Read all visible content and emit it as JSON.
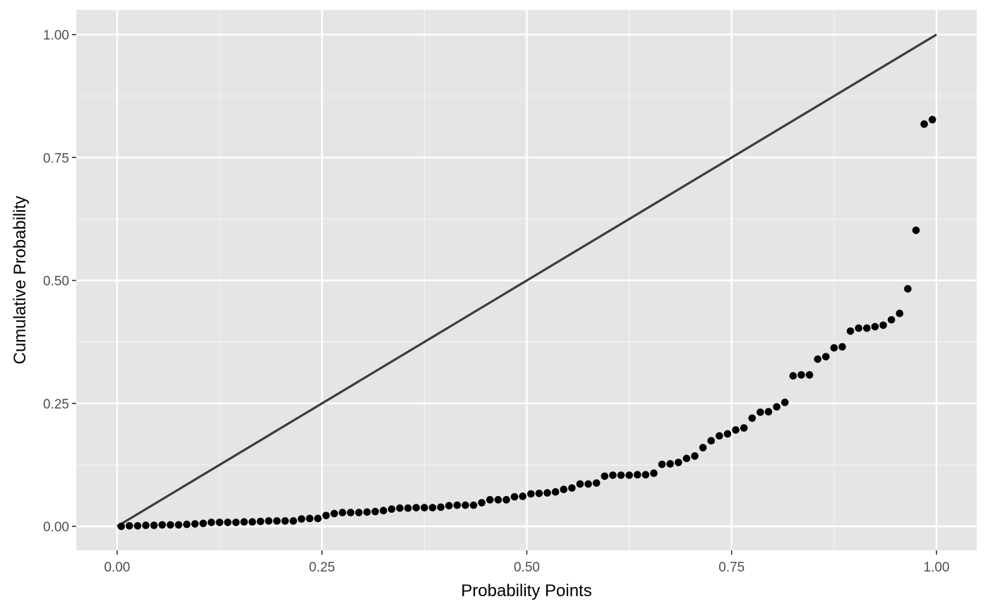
{
  "chart_data": {
    "type": "scatter",
    "xlabel": "Probability Points",
    "ylabel": "Cumulative Probability",
    "xlim": [
      -0.05,
      1.05
    ],
    "ylim": [
      -0.05,
      1.05
    ],
    "x_ticks": [
      0,
      0.25,
      0.5,
      0.75,
      1
    ],
    "x_tick_labels": [
      "0.00",
      "0.25",
      "0.50",
      "0.75",
      "1.00"
    ],
    "y_ticks": [
      0,
      0.25,
      0.5,
      0.75,
      1
    ],
    "y_tick_labels": [
      "0.00",
      "0.25",
      "0.50",
      "0.75",
      "1.00"
    ],
    "grid": true,
    "reference_line": {
      "x": [
        0,
        1
      ],
      "y": [
        0,
        1
      ]
    },
    "points": {
      "x": [
        0.005,
        0.015,
        0.025,
        0.035,
        0.045,
        0.055,
        0.065,
        0.075,
        0.085,
        0.095,
        0.105,
        0.115,
        0.125,
        0.135,
        0.145,
        0.155,
        0.165,
        0.175,
        0.185,
        0.195,
        0.205,
        0.215,
        0.225,
        0.235,
        0.245,
        0.255,
        0.265,
        0.275,
        0.285,
        0.295,
        0.305,
        0.315,
        0.325,
        0.335,
        0.345,
        0.355,
        0.365,
        0.375,
        0.385,
        0.395,
        0.405,
        0.415,
        0.425,
        0.435,
        0.445,
        0.455,
        0.465,
        0.475,
        0.485,
        0.495,
        0.505,
        0.515,
        0.525,
        0.535,
        0.545,
        0.555,
        0.565,
        0.575,
        0.585,
        0.595,
        0.605,
        0.615,
        0.625,
        0.635,
        0.645,
        0.655,
        0.665,
        0.675,
        0.685,
        0.695,
        0.705,
        0.715,
        0.725,
        0.735,
        0.745,
        0.755,
        0.765,
        0.775,
        0.785,
        0.795,
        0.805,
        0.815,
        0.825,
        0.835,
        0.845,
        0.855,
        0.865,
        0.875,
        0.885,
        0.895,
        0.905,
        0.915,
        0.925,
        0.935,
        0.945,
        0.955,
        0.965,
        0.975,
        0.985,
        0.995
      ],
      "y": [
        0.0,
        0.001,
        0.001,
        0.002,
        0.002,
        0.003,
        0.003,
        0.003,
        0.004,
        0.005,
        0.006,
        0.008,
        0.008,
        0.008,
        0.008,
        0.009,
        0.009,
        0.01,
        0.011,
        0.011,
        0.011,
        0.011,
        0.015,
        0.016,
        0.016,
        0.022,
        0.026,
        0.028,
        0.028,
        0.028,
        0.029,
        0.03,
        0.032,
        0.035,
        0.037,
        0.037,
        0.038,
        0.038,
        0.038,
        0.039,
        0.042,
        0.043,
        0.043,
        0.043,
        0.048,
        0.054,
        0.054,
        0.054,
        0.06,
        0.061,
        0.066,
        0.067,
        0.068,
        0.07,
        0.075,
        0.078,
        0.086,
        0.086,
        0.088,
        0.102,
        0.104,
        0.104,
        0.104,
        0.105,
        0.105,
        0.108,
        0.126,
        0.127,
        0.13,
        0.138,
        0.143,
        0.16,
        0.174,
        0.184,
        0.188,
        0.196,
        0.2,
        0.22,
        0.232,
        0.233,
        0.243,
        0.252,
        0.306,
        0.308,
        0.308,
        0.34,
        0.345,
        0.363,
        0.365,
        0.397,
        0.403,
        0.403,
        0.406,
        0.409,
        0.42,
        0.433,
        0.483,
        0.602,
        0.818,
        0.827
      ]
    }
  }
}
